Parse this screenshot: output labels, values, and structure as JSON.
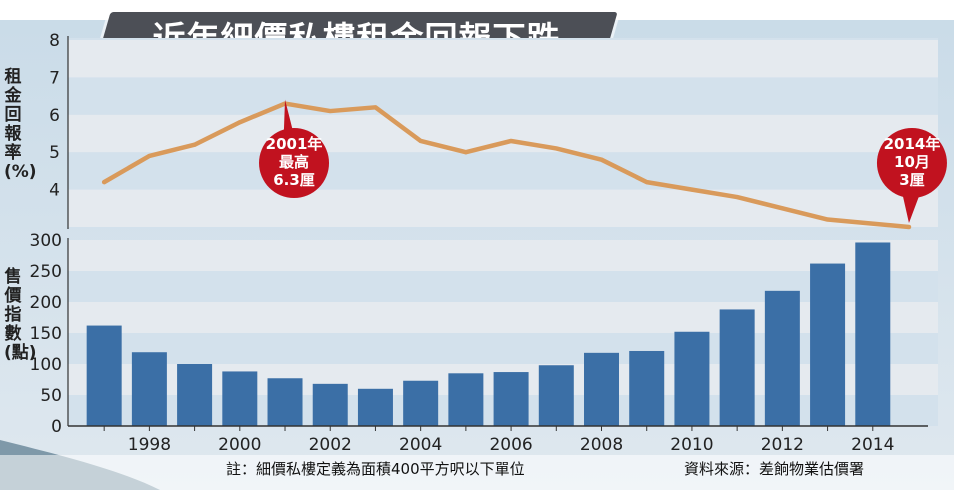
{
  "title": "近年細價私樓租金回報下跌",
  "colors": {
    "line": "#d99a5b",
    "bar": "#3b6fa6",
    "callout": "#c1121f",
    "band": "#e8ebf0",
    "title_bg": "#4c4f56"
  },
  "notes": {
    "footnote": "註：細價私樓定義為面積400平方呎以下單位",
    "source": "資料來源：差餉物業估價署"
  },
  "chart_data": [
    {
      "type": "line",
      "ylabel": "租金回報率(%)",
      "ylim": [
        3,
        8
      ],
      "yticks": [
        "8",
        "7",
        "6",
        "5",
        "4"
      ],
      "x": [
        1997,
        1998,
        1999,
        2000,
        2001,
        2002,
        2003,
        2004,
        2005,
        2006,
        2007,
        2008,
        2009,
        2010,
        2011,
        2012,
        2013,
        2014.8
      ],
      "values": [
        4.2,
        4.9,
        5.2,
        5.8,
        6.3,
        6.1,
        6.2,
        5.3,
        5.0,
        5.3,
        5.1,
        4.8,
        4.2,
        4.0,
        3.8,
        3.5,
        3.2,
        3.0
      ],
      "annotations": [
        {
          "lines": [
            "2001年",
            "最高",
            "6.3厘"
          ],
          "x": 2001,
          "y": 6.3
        },
        {
          "lines": [
            "2014年",
            "10月",
            "3厘"
          ],
          "x": 2014.8,
          "y": 3.0
        }
      ]
    },
    {
      "type": "bar",
      "ylabel": "售價指數(點)",
      "ylim": [
        0,
        300
      ],
      "yticks": [
        "300",
        "250",
        "200",
        "150",
        "100",
        "50",
        "0"
      ],
      "categories": [
        1997,
        1998,
        1999,
        2000,
        2001,
        2002,
        2003,
        2004,
        2005,
        2006,
        2007,
        2008,
        2009,
        2010,
        2011,
        2012,
        2013,
        2014
      ],
      "values": [
        162,
        119,
        100,
        88,
        77,
        68,
        60,
        73,
        85,
        87,
        98,
        118,
        121,
        152,
        188,
        218,
        262,
        296
      ],
      "xtick_labels": [
        "1998",
        "2000",
        "2002",
        "2004",
        "2006",
        "2008",
        "2010",
        "2012",
        "2014"
      ]
    }
  ]
}
